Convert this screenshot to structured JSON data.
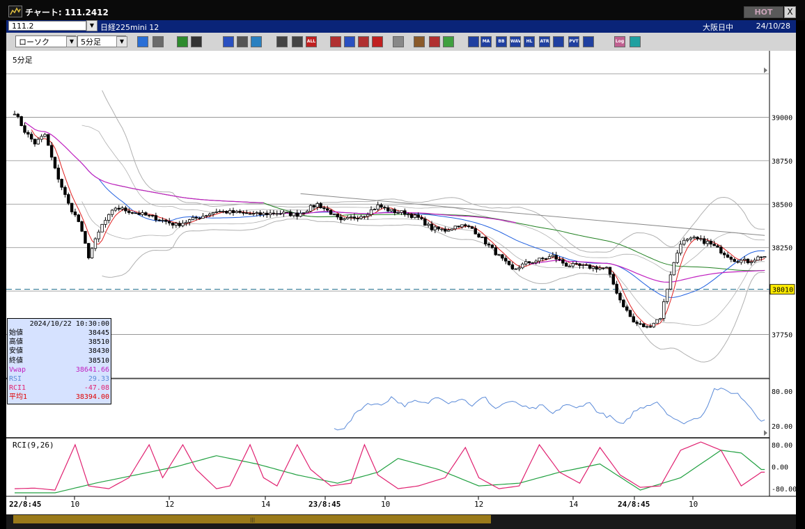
{
  "window": {
    "title": "チャート: 111.2412",
    "hot_label": "HOT",
    "close_label": "X"
  },
  "infobar": {
    "symbol_code": "111.2",
    "instrument": "日経225mini 12",
    "session": "大阪日中",
    "date": "24/10/28"
  },
  "toolbar": {
    "chart_type": "ローソク",
    "timeframe": "5分足",
    "buttons": [
      {
        "id": "zoom",
        "icon": "magnifier-icon",
        "text": "",
        "color": "#2a6fd6"
      },
      {
        "id": "split",
        "icon": "split-pane-icon",
        "text": "",
        "color": "#6b6b6b"
      },
      {
        "id": "pen",
        "icon": "pen-icon",
        "text": "",
        "color": "#2e8b2e"
      },
      {
        "id": "line",
        "icon": "trendline-icon",
        "text": "",
        "color": "#333333"
      },
      {
        "id": "cursor",
        "icon": "cursor-icon",
        "text": "",
        "color": "#2a50c0"
      },
      {
        "id": "copy",
        "icon": "copy-icon",
        "text": "",
        "color": "#555555"
      },
      {
        "id": "trash",
        "icon": "trash-icon",
        "text": "",
        "color": "#2a80c0"
      },
      {
        "id": "cand1",
        "icon": "candle-icon",
        "text": "",
        "color": "#444444"
      },
      {
        "id": "cand2",
        "icon": "candle-icon",
        "text": "",
        "color": "#444444"
      },
      {
        "id": "all",
        "icon": "all-icon",
        "text": "ALL",
        "color": "#c02020"
      },
      {
        "id": "hand",
        "icon": "hand-icon",
        "text": "",
        "color": "#b03030"
      },
      {
        "id": "search2",
        "icon": "search-icon",
        "text": "",
        "color": "#2a50c0"
      },
      {
        "id": "grid",
        "icon": "grid-icon",
        "text": "",
        "color": "#b03030"
      },
      {
        "id": "crosshair",
        "icon": "crosshair-icon",
        "text": "",
        "color": "#c02020"
      },
      {
        "id": "alert",
        "icon": "alert-icon",
        "text": "",
        "color": "#888888"
      },
      {
        "id": "settings",
        "icon": "gear-icon",
        "text": "",
        "color": "#8a5a2a"
      },
      {
        "id": "brush",
        "icon": "brush-icon",
        "text": "",
        "color": "#b03030"
      },
      {
        "id": "palette",
        "icon": "palette-icon",
        "text": "",
        "color": "#40a040"
      },
      {
        "id": "sigma",
        "icon": "sigma-icon",
        "text": "",
        "color": "#2040a0"
      },
      {
        "id": "ma",
        "icon": "ma-icon",
        "text": "MA",
        "color": "#2040a0"
      },
      {
        "id": "bb",
        "icon": "bb-icon",
        "text": "BB",
        "color": "#2040a0"
      },
      {
        "id": "wave",
        "icon": "wave-icon",
        "text": "WAVE",
        "color": "#2040a0"
      },
      {
        "id": "hl",
        "icon": "hl-icon",
        "text": "HL",
        "color": "#2040a0"
      },
      {
        "id": "atr",
        "icon": "atr-icon",
        "text": "ATR",
        "color": "#2040a0"
      },
      {
        "id": "eq",
        "icon": "equalizer-icon",
        "text": "",
        "color": "#2040a0"
      },
      {
        "id": "pvt",
        "icon": "pvt-icon",
        "text": "PVT",
        "color": "#2040a0"
      },
      {
        "id": "box",
        "icon": "box-icon",
        "text": "",
        "color": "#2040a0"
      },
      {
        "id": "log",
        "icon": "log-icon",
        "text": "Log",
        "color": "#c06090"
      },
      {
        "id": "export",
        "icon": "export-icon",
        "text": "",
        "color": "#20a0a0"
      }
    ]
  },
  "main_pane": {
    "label": "5分足",
    "price_ticks": [
      "39000",
      "38750",
      "38500",
      "38250",
      "37750"
    ],
    "current_price": "38010",
    "current_price_color": "#1a6b8a"
  },
  "rsi_pane": {
    "ticks": [
      "80.00",
      "20.00"
    ]
  },
  "rci_pane": {
    "label": "RCI(9,26)",
    "ticks": [
      "80.00",
      "0.00",
      "-80.00"
    ]
  },
  "time_axis": [
    "22/8:45",
    "10",
    "12",
    "14",
    "23/8:45",
    "10",
    "12",
    "14",
    "24/8:45",
    "10"
  ],
  "data_window": {
    "timestamp": "2024/10/22  10:30:00",
    "rows": [
      {
        "key": "始値",
        "value": "38445",
        "color": "#000000"
      },
      {
        "key": "高値",
        "value": "38510",
        "color": "#000000"
      },
      {
        "key": "安値",
        "value": "38430",
        "color": "#000000"
      },
      {
        "key": "終値",
        "value": "38510",
        "color": "#000000"
      },
      {
        "key": "Vwap",
        "value": "38641.66",
        "color": "#c020c0"
      },
      {
        "key": "RSI",
        "value": "29.33",
        "color": "#5a8ad8"
      },
      {
        "key": "RCI1",
        "value": "-47.08",
        "color": "#e02070"
      },
      {
        "key": "平均1",
        "value": "38394.00",
        "color": "#e00000"
      }
    ]
  },
  "chart_data": {
    "type": "candlestick",
    "price_range": [
      37500,
      39250
    ],
    "price_path": [
      [
        0,
        39030
      ],
      [
        3,
        38920
      ],
      [
        6,
        38850
      ],
      [
        9,
        38900
      ],
      [
        12,
        38700
      ],
      [
        16,
        38500
      ],
      [
        19,
        38400
      ],
      [
        22,
        38200
      ],
      [
        26,
        38380
      ],
      [
        30,
        38480
      ],
      [
        36,
        38450
      ],
      [
        42,
        38420
      ],
      [
        48,
        38380
      ],
      [
        54,
        38420
      ],
      [
        60,
        38460
      ],
      [
        66,
        38450
      ],
      [
        72,
        38440
      ],
      [
        78,
        38450
      ],
      [
        84,
        38440
      ],
      [
        90,
        38500
      ],
      [
        94,
        38450
      ],
      [
        97,
        38400
      ],
      [
        100,
        38420
      ],
      [
        104,
        38440
      ],
      [
        108,
        38490
      ],
      [
        112,
        38460
      ],
      [
        116,
        38450
      ],
      [
        120,
        38420
      ],
      [
        124,
        38360
      ],
      [
        128,
        38350
      ],
      [
        132,
        38380
      ],
      [
        136,
        38360
      ],
      [
        140,
        38280
      ],
      [
        144,
        38200
      ],
      [
        148,
        38120
      ],
      [
        152,
        38160
      ],
      [
        156,
        38180
      ],
      [
        160,
        38200
      ],
      [
        164,
        38150
      ],
      [
        170,
        38140
      ],
      [
        176,
        38130
      ],
      [
        180,
        37950
      ],
      [
        184,
        37820
      ],
      [
        188,
        37790
      ],
      [
        192,
        37850
      ],
      [
        195,
        38100
      ],
      [
        198,
        38280
      ],
      [
        202,
        38300
      ],
      [
        206,
        38280
      ],
      [
        210,
        38230
      ],
      [
        214,
        38180
      ],
      [
        218,
        38170
      ],
      [
        222,
        38200
      ]
    ],
    "lines": {
      "sma_short": {
        "color": "#e02020"
      },
      "sma_mid": {
        "color": "#2060e0"
      },
      "sma_long": {
        "color": "#208020"
      },
      "vwap": {
        "color": "#c020c0"
      },
      "bollinger": {
        "color": "#b0b0b0"
      },
      "trendline": {
        "color": "#888888"
      }
    },
    "rsi": {
      "range": [
        0,
        100
      ],
      "color": "#5a8ad8",
      "values": [
        [
          0,
          15
        ],
        [
          6,
          18
        ],
        [
          12,
          45
        ],
        [
          18,
          60
        ],
        [
          24,
          55
        ],
        [
          30,
          70
        ],
        [
          36,
          55
        ],
        [
          42,
          62
        ],
        [
          48,
          58
        ],
        [
          54,
          72
        ],
        [
          60,
          60
        ],
        [
          66,
          68
        ],
        [
          72,
          55
        ],
        [
          78,
          70
        ],
        [
          84,
          50
        ],
        [
          90,
          62
        ],
        [
          96,
          58
        ],
        [
          102,
          48
        ],
        [
          108,
          55
        ],
        [
          114,
          40
        ],
        [
          120,
          58
        ],
        [
          126,
          50
        ],
        [
          132,
          62
        ],
        [
          138,
          42
        ],
        [
          144,
          35
        ],
        [
          150,
          20
        ],
        [
          156,
          45
        ],
        [
          162,
          55
        ],
        [
          168,
          62
        ],
        [
          174,
          40
        ],
        [
          180,
          25
        ],
        [
          186,
          30
        ],
        [
          192,
          40
        ],
        [
          198,
          85
        ],
        [
          204,
          80
        ],
        [
          210,
          75
        ],
        [
          216,
          55
        ],
        [
          222,
          30
        ]
      ]
    },
    "rci_short": {
      "range": [
        -100,
        100
      ],
      "color": "#e02070",
      "values": [
        [
          0,
          -80
        ],
        [
          6,
          -78
        ],
        [
          12,
          -85
        ],
        [
          18,
          80
        ],
        [
          22,
          -70
        ],
        [
          28,
          -80
        ],
        [
          34,
          -40
        ],
        [
          40,
          80
        ],
        [
          44,
          -40
        ],
        [
          50,
          80
        ],
        [
          54,
          -10
        ],
        [
          60,
          -80
        ],
        [
          64,
          -70
        ],
        [
          70,
          80
        ],
        [
          74,
          -40
        ],
        [
          78,
          -70
        ],
        [
          84,
          80
        ],
        [
          88,
          -10
        ],
        [
          94,
          -70
        ],
        [
          100,
          -60
        ],
        [
          104,
          80
        ],
        [
          108,
          -30
        ],
        [
          114,
          -80
        ],
        [
          120,
          -70
        ],
        [
          128,
          -40
        ],
        [
          134,
          70
        ],
        [
          138,
          -40
        ],
        [
          144,
          -80
        ],
        [
          150,
          -70
        ],
        [
          156,
          80
        ],
        [
          162,
          -20
        ],
        [
          168,
          -60
        ],
        [
          174,
          70
        ],
        [
          180,
          -30
        ],
        [
          186,
          -75
        ],
        [
          192,
          -70
        ],
        [
          198,
          60
        ],
        [
          204,
          90
        ],
        [
          210,
          60
        ],
        [
          216,
          -70
        ],
        [
          222,
          -20
        ]
      ]
    },
    "rci_long": {
      "range": [
        -100,
        100
      ],
      "color": "#20a040",
      "values": [
        [
          0,
          -95
        ],
        [
          12,
          -95
        ],
        [
          24,
          -60
        ],
        [
          36,
          -30
        ],
        [
          48,
          0
        ],
        [
          60,
          40
        ],
        [
          72,
          10
        ],
        [
          84,
          -30
        ],
        [
          96,
          -60
        ],
        [
          108,
          -20
        ],
        [
          114,
          30
        ],
        [
          126,
          -10
        ],
        [
          138,
          -70
        ],
        [
          150,
          -60
        ],
        [
          162,
          -20
        ],
        [
          174,
          10
        ],
        [
          186,
          -85
        ],
        [
          198,
          -40
        ],
        [
          210,
          60
        ],
        [
          216,
          50
        ],
        [
          222,
          -10
        ]
      ]
    }
  }
}
